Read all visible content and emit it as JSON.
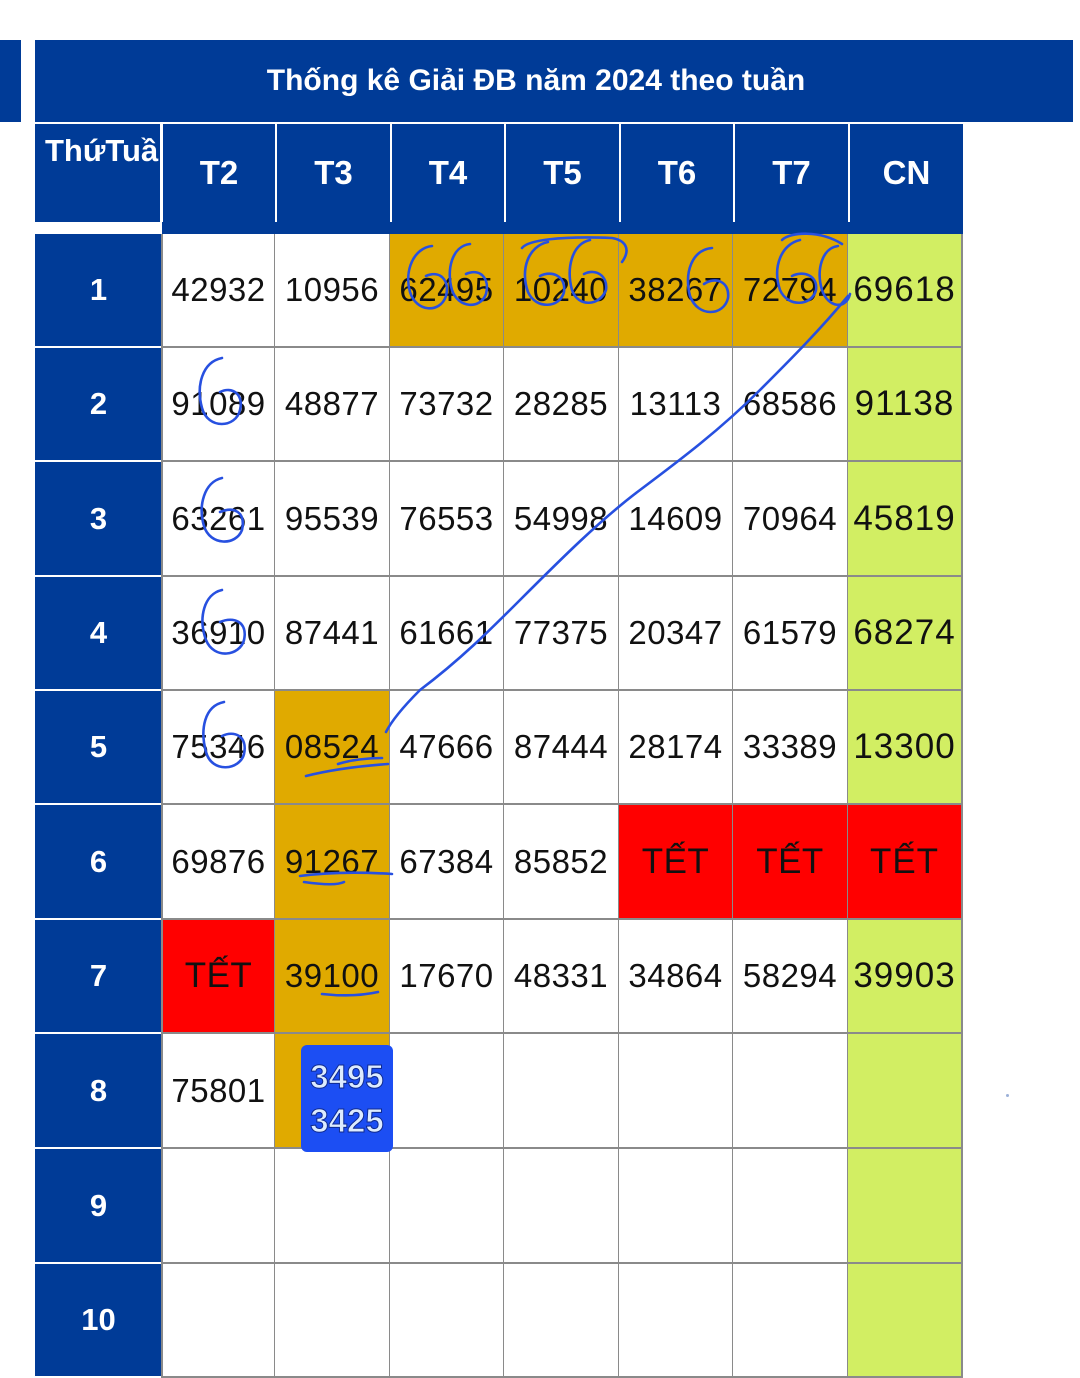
{
  "title": "Thống kê Giải ĐB năm 2024 theo tuần",
  "header": {
    "corner_line1": "Thứ",
    "corner_line2": "Tuần",
    "days": [
      "T2",
      "T3",
      "T4",
      "T5",
      "T6",
      "T7",
      "CN"
    ]
  },
  "rows": [
    {
      "week": "1",
      "cells": [
        "42932",
        "10956",
        "62495",
        "10240",
        "38267",
        "72794",
        "69618"
      ]
    },
    {
      "week": "2",
      "cells": [
        "91089",
        "48877",
        "73732",
        "28285",
        "13113",
        "68586",
        "91138"
      ]
    },
    {
      "week": "3",
      "cells": [
        "63261",
        "95539",
        "76553",
        "54998",
        "14609",
        "70964",
        "45819"
      ]
    },
    {
      "week": "4",
      "cells": [
        "36910",
        "87441",
        "61661",
        "77375",
        "20347",
        "61579",
        "68274"
      ]
    },
    {
      "week": "5",
      "cells": [
        "75346",
        "08524",
        "47666",
        "87444",
        "28174",
        "33389",
        "13300"
      ]
    },
    {
      "week": "6",
      "cells": [
        "69876",
        "91267",
        "67384",
        "85852",
        "TẾT",
        "TẾT",
        "TẾT"
      ]
    },
    {
      "week": "7",
      "cells": [
        "TẾT",
        "39100",
        "17670",
        "48331",
        "34864",
        "58294",
        "39903"
      ]
    },
    {
      "week": "8",
      "cells": [
        "75801",
        "",
        "",
        "",
        "",
        "",
        ""
      ]
    },
    {
      "week": "9",
      "cells": [
        "",
        "",
        "",
        "",
        "",
        "",
        ""
      ]
    },
    {
      "week": "10",
      "cells": [
        "",
        "",
        "",
        "",
        "",
        "",
        ""
      ]
    }
  ],
  "badge": {
    "line1": "3495",
    "line2": "3425"
  },
  "colors": {
    "header_blue": "#003b97",
    "highlight_gold": "#e0aa00",
    "sunday_green": "#d2ee63",
    "tet_red": "#ff0000",
    "badge_blue": "#1c4ef3",
    "ink_blue": "#2750e0"
  }
}
